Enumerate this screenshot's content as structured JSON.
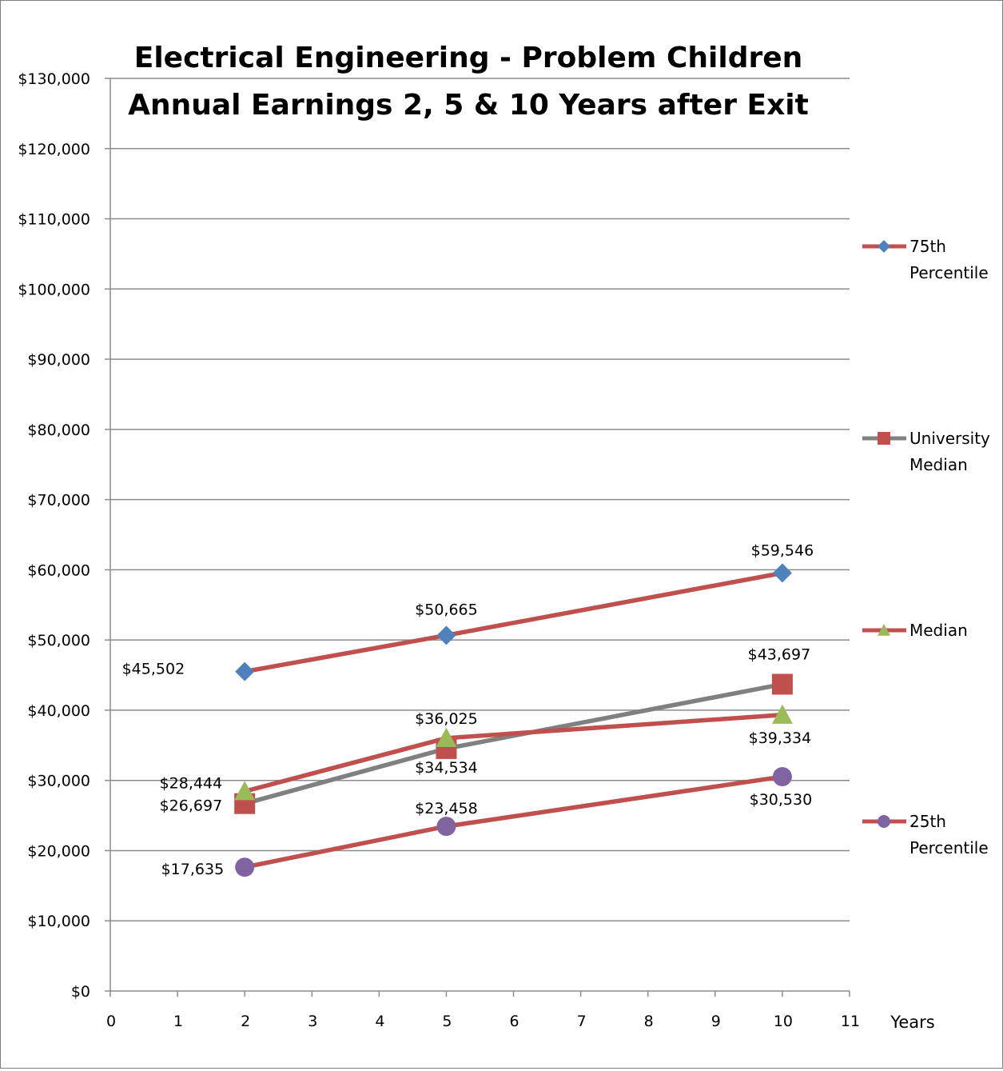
{
  "chart_data": {
    "type": "line",
    "title_lines": [
      "Electrical Engineering - Problem Children",
      "Annual Earnings 2, 5 & 10 Years after Exit"
    ],
    "xlabel": "Years",
    "ylabel": "",
    "xlim": [
      0,
      11
    ],
    "ylim": [
      0,
      130000
    ],
    "x_ticks": [
      0,
      1,
      2,
      3,
      4,
      5,
      6,
      7,
      8,
      9,
      10,
      11
    ],
    "y_ticks": [
      0,
      10000,
      20000,
      30000,
      40000,
      50000,
      60000,
      70000,
      80000,
      90000,
      100000,
      110000,
      120000,
      130000
    ],
    "y_tick_labels": [
      "$0",
      "$10,000",
      "$20,000",
      "$30,000",
      "$40,000",
      "$50,000",
      "$60,000",
      "$70,000",
      "$80,000",
      "$90,000",
      "$100,000",
      "$110,000",
      "$120,000",
      "$130,000"
    ],
    "grid": true,
    "legend_position": "right",
    "series": [
      {
        "name_lines": [
          "75th",
          "Percentile"
        ],
        "x": [
          2,
          5,
          10
        ],
        "values": [
          45502,
          50665,
          59546
        ],
        "labels": [
          "$45,502",
          "$50,665",
          "$59,546"
        ],
        "line_color": "#c0504d",
        "marker": "diamond",
        "marker_color": "#4f81bd"
      },
      {
        "name_lines": [
          "University",
          "Median"
        ],
        "x": [
          2,
          5,
          10
        ],
        "values": [
          26697,
          34534,
          43697
        ],
        "labels": [
          "$26,697",
          "$34,534",
          "$43,697"
        ],
        "line_color": "#808080",
        "marker": "square",
        "marker_color": "#c0504d"
      },
      {
        "name_lines": [
          "Median"
        ],
        "x": [
          2,
          5,
          10
        ],
        "values": [
          28444,
          36025,
          39334
        ],
        "labels": [
          "$28,444",
          "$36,025",
          "$39,334"
        ],
        "line_color": "#c0504d",
        "marker": "triangle",
        "marker_color": "#9bbb59"
      },
      {
        "name_lines": [
          "25th",
          "Percentile"
        ],
        "x": [
          2,
          5,
          10
        ],
        "values": [
          17635,
          23458,
          30530
        ],
        "labels": [
          "$17,635",
          "$23,458",
          "$30,530"
        ],
        "line_color": "#c0504d",
        "marker": "circle",
        "marker_color": "#8064a2"
      }
    ]
  }
}
